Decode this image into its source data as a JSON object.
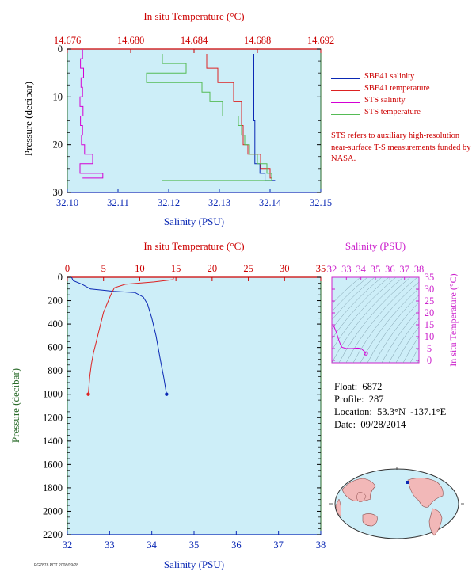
{
  "colors": {
    "salinity": "#0a28b4",
    "temperature": "#dd2222",
    "sts_salinity": "#d400d4",
    "sts_temperature": "#55bb55",
    "plot_bg": "#cdeef8",
    "axis_red": "#cc0000",
    "axis_blue": "#0a28b4",
    "axis_green": "#2a6b2a",
    "axis_magenta": "#cc22cc"
  },
  "legend": {
    "items": [
      {
        "label": "SBE41 salinity",
        "color": "#0a28b4"
      },
      {
        "label": "SBE41 temperature",
        "color": "#dd2222"
      },
      {
        "label": "STS salinity",
        "color": "#d400d4"
      },
      {
        "label": "STS temperature",
        "color": "#55bb55"
      }
    ],
    "note": "STS refers to auxiliary high-resolution near-surface T-S measurements funded by NASA."
  },
  "info": {
    "float": "Float:  6872",
    "profile": "Profile:  287",
    "location": "Location:  53.3°N  -137.1°E",
    "date": "Date:  09/28/2014"
  },
  "footer_text": "PG7878 PDT 2008/09/28",
  "chart_data": [
    {
      "type": "line",
      "title": "In situ Temperature (°C)",
      "xlabel": "Salinity (PSU)",
      "ylabel": "Pressure (decibar)",
      "top_axis_label": "In situ Temperature (°C)",
      "bottom_ticks": [
        "32.10",
        "32.11",
        "32.12",
        "32.13",
        "32.14",
        "32.15"
      ],
      "top_ticks": [
        "14.676",
        "14.680",
        "14.684",
        "14.688",
        "14.692"
      ],
      "left_ticks": [
        "0",
        "10",
        "20",
        "30"
      ],
      "xlim": [
        32.1,
        32.15
      ],
      "top_lim": [
        14.676,
        14.692
      ],
      "ylim": [
        30,
        0
      ],
      "series": [
        {
          "name": "SBE41 salinity",
          "axis": "bottom",
          "x": [
            32.1368,
            32.1368,
            32.1368,
            32.137,
            32.137,
            32.138,
            32.139,
            32.141
          ],
          "y": [
            1,
            5,
            10,
            15,
            20,
            24,
            26,
            27.5
          ]
        },
        {
          "name": "SBE41 temperature",
          "axis": "top",
          "x": [
            14.6848,
            14.6855,
            14.6865,
            14.687,
            14.6871,
            14.6874,
            14.6882,
            14.6888,
            14.6889
          ],
          "y": [
            1,
            4,
            7,
            11,
            16,
            20,
            22,
            25,
            27
          ]
        },
        {
          "name": "STS salinity",
          "axis": "bottom",
          "x": [
            32.103,
            32.1026,
            32.1032,
            32.1027,
            32.103,
            32.1025,
            32.1031,
            32.1026,
            32.103,
            32.1028,
            32.1034,
            32.105,
            32.1025,
            32.107,
            32.103
          ],
          "y": [
            0,
            2,
            4,
            6,
            8,
            10,
            12,
            14,
            16,
            18,
            20,
            22,
            24,
            26,
            27
          ]
        },
        {
          "name": "STS temperature",
          "axis": "top",
          "x": [
            14.682,
            14.6835,
            14.681,
            14.6845,
            14.685,
            14.6858,
            14.6868,
            14.687,
            14.6872,
            14.6875,
            14.688,
            14.6886,
            14.6889,
            14.682
          ],
          "y": [
            1,
            3,
            5,
            7,
            9,
            11,
            14,
            16,
            18,
            20,
            22,
            24,
            26,
            27.5
          ]
        }
      ]
    },
    {
      "type": "line",
      "title": "In situ Temperature (°C)",
      "xlabel": "Salinity (PSU)",
      "ylabel": "Pressure (decibar)",
      "top_axis_label": "In situ Temperature (°C)",
      "bottom_ticks": [
        "32",
        "33",
        "34",
        "35",
        "36",
        "37",
        "38"
      ],
      "top_ticks": [
        "0",
        "5",
        "10",
        "15",
        "20",
        "25",
        "30",
        "35"
      ],
      "left_ticks": [
        "0",
        "200",
        "400",
        "600",
        "800",
        "1000",
        "1200",
        "1400",
        "1600",
        "1800",
        "2000",
        "2200"
      ],
      "xlim": [
        32,
        38
      ],
      "top_lim": [
        0,
        35
      ],
      "ylim": [
        2200,
        0
      ],
      "series": [
        {
          "name": "Salinity",
          "axis": "bottom",
          "x": [
            32.1,
            32.14,
            32.35,
            32.55,
            33.1,
            33.6,
            33.8,
            33.9,
            34.0,
            34.1,
            34.2,
            34.28,
            34.35
          ],
          "y": [
            0,
            30,
            60,
            100,
            120,
            130,
            170,
            230,
            350,
            500,
            700,
            850,
            1000
          ]
        },
        {
          "name": "Temperature",
          "axis": "top",
          "x": [
            14.7,
            14.6,
            12.0,
            8.0,
            6.5,
            6.0,
            5.0,
            4.4,
            4.0,
            3.6,
            3.3,
            3.1,
            2.9
          ],
          "y": [
            0,
            20,
            40,
            60,
            90,
            150,
            300,
            450,
            550,
            650,
            750,
            850,
            1000
          ]
        }
      ]
    },
    {
      "type": "line",
      "title": "Salinity (PSU)",
      "xlabel": "Salinity (PSU)",
      "ylabel": "In situ Temperature (°C)",
      "top_ticks": [
        "32",
        "33",
        "34",
        "35",
        "36",
        "37",
        "38"
      ],
      "right_ticks": [
        "0",
        "5",
        "10",
        "15",
        "20",
        "25",
        "30",
        "35"
      ],
      "xlim": [
        32,
        38
      ],
      "ylim": [
        -1,
        35
      ],
      "series": [
        {
          "name": "T-S",
          "axis": "top",
          "x": [
            32.12,
            32.3,
            32.45,
            32.6,
            32.7,
            33.0,
            33.4,
            33.8,
            34.0,
            34.1,
            34.2,
            34.3,
            34.35
          ],
          "y": [
            14.7,
            12.0,
            9.0,
            6.5,
            5.5,
            5.0,
            5.0,
            5.2,
            5.0,
            4.5,
            4.0,
            3.4,
            2.9
          ]
        }
      ]
    }
  ]
}
